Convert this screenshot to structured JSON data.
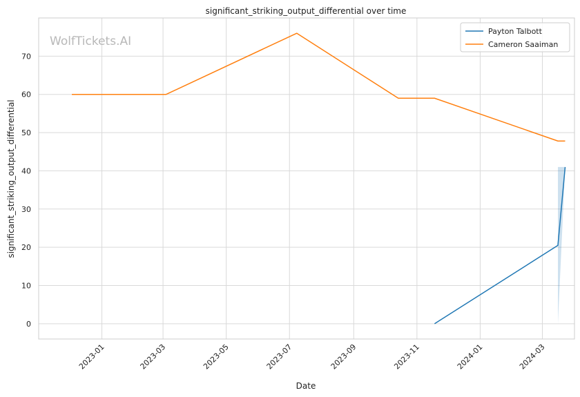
{
  "chart_data": {
    "type": "line",
    "title": "significant_striking_output_differential over time",
    "xlabel": "Date",
    "ylabel": "significant_striking_output_differential",
    "watermark": "WolfTickets.AI",
    "x_ticks": [
      "2023-01",
      "2023-03",
      "2023-05",
      "2023-07",
      "2023-09",
      "2023-11",
      "2024-01",
      "2024-03"
    ],
    "y_ticks": [
      0,
      10,
      20,
      30,
      40,
      50,
      60,
      70
    ],
    "xlim": [
      "2022-11-01",
      "2024-04-01"
    ],
    "ylim": [
      -4,
      80
    ],
    "grid": true,
    "legend_position": "top-right",
    "series": [
      {
        "name": "Payton Talbott",
        "color": "#1f77b4",
        "points": [
          {
            "x": "2023-11-18",
            "y": 0
          },
          {
            "x": "2024-03-16",
            "y": 20.5
          },
          {
            "x": "2024-03-23",
            "y": 41
          }
        ],
        "band": [
          {
            "x": "2024-03-16",
            "low": 0,
            "high": 41
          },
          {
            "x": "2024-03-23",
            "low": 41,
            "high": 41
          }
        ]
      },
      {
        "name": "Cameron Saaiman",
        "color": "#ff7f0e",
        "points": [
          {
            "x": "2022-12-03",
            "y": 60
          },
          {
            "x": "2023-03-04",
            "y": 60
          },
          {
            "x": "2023-07-08",
            "y": 76
          },
          {
            "x": "2023-10-14",
            "y": 59
          },
          {
            "x": "2023-11-18",
            "y": 59
          },
          {
            "x": "2024-03-16",
            "y": 47.8
          },
          {
            "x": "2024-03-23",
            "y": 47.8
          }
        ]
      }
    ]
  }
}
